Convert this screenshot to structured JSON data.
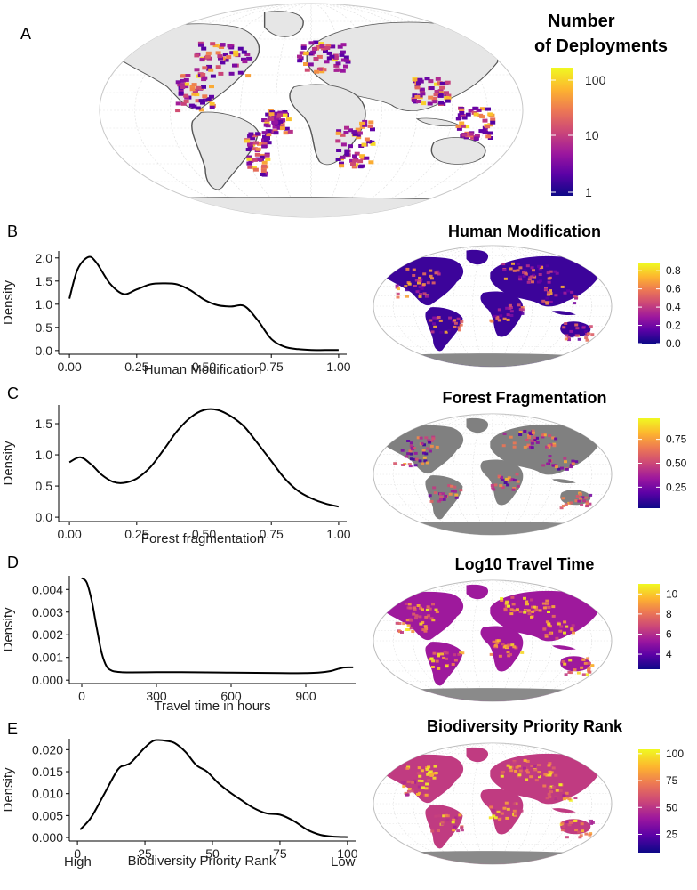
{
  "panel_a": {
    "letter": "A",
    "legend_title_line1": "Number",
    "legend_title_line2": "of Deployments",
    "colorbar_ticks": [
      "100",
      "10",
      "1"
    ]
  },
  "colors": {
    "plasma": [
      "#0d0887",
      "#5c01a6",
      "#9c179e",
      "#cc4778",
      "#ed7953",
      "#fdb42f",
      "#f0f921"
    ],
    "land": "#e6e6e6",
    "masked_land": "#808080",
    "curve": "#000000"
  },
  "chart_data": [
    {
      "id": "B",
      "type": "line",
      "letter": "B",
      "xlabel": "Human Modification",
      "ylabel": "Density",
      "xlim": [
        -0.04,
        1.03
      ],
      "ylim": [
        -0.08,
        2.15
      ],
      "xticks": [
        "0.00",
        "0.25",
        "0.50",
        "0.75",
        "1.00"
      ],
      "xtick_values": [
        0,
        0.25,
        0.5,
        0.75,
        1.0
      ],
      "yticks": [
        "0.0",
        "0.5",
        "1.0",
        "1.5",
        "2.0"
      ],
      "ytick_values": [
        0,
        0.5,
        1.0,
        1.5,
        2.0
      ],
      "series": [
        {
          "x": [
            0.0,
            0.03,
            0.07,
            0.1,
            0.15,
            0.2,
            0.25,
            0.3,
            0.35,
            0.4,
            0.45,
            0.5,
            0.55,
            0.6,
            0.65,
            0.7,
            0.75,
            0.8,
            0.85,
            0.9,
            0.95,
            1.0
          ],
          "y": [
            1.12,
            1.75,
            2.02,
            1.9,
            1.45,
            1.22,
            1.32,
            1.43,
            1.45,
            1.43,
            1.3,
            1.1,
            0.98,
            0.95,
            0.96,
            0.65,
            0.25,
            0.08,
            0.03,
            0.01,
            0.01,
            0.01
          ]
        }
      ]
    },
    {
      "id": "C",
      "type": "line",
      "letter": "C",
      "xlabel": "Forest fragmentation",
      "ylabel": "Density",
      "xlim": [
        -0.04,
        1.03
      ],
      "ylim": [
        -0.07,
        1.8
      ],
      "xticks": [
        "0.00",
        "0.25",
        "0.50",
        "0.75",
        "1.00"
      ],
      "xtick_values": [
        0,
        0.25,
        0.5,
        0.75,
        1.0
      ],
      "yticks": [
        "0.0",
        "0.5",
        "1.0",
        "1.5"
      ],
      "ytick_values": [
        0,
        0.5,
        1.0,
        1.5
      ],
      "series": [
        {
          "x": [
            0.0,
            0.04,
            0.08,
            0.12,
            0.16,
            0.2,
            0.25,
            0.3,
            0.35,
            0.4,
            0.45,
            0.5,
            0.55,
            0.6,
            0.65,
            0.7,
            0.75,
            0.8,
            0.85,
            0.9,
            0.95,
            1.0
          ],
          "y": [
            0.88,
            0.96,
            0.85,
            0.68,
            0.57,
            0.55,
            0.62,
            0.8,
            1.08,
            1.38,
            1.6,
            1.72,
            1.72,
            1.62,
            1.45,
            1.18,
            0.9,
            0.62,
            0.42,
            0.3,
            0.22,
            0.17
          ]
        }
      ]
    },
    {
      "id": "D",
      "type": "line",
      "letter": "D",
      "xlabel": "Travel time in hours",
      "ylabel": "Density",
      "xlim": [
        -50,
        1100
      ],
      "ylim": [
        -0.00015,
        0.0046
      ],
      "xticks": [
        "0",
        "300",
        "600",
        "900"
      ],
      "xtick_values": [
        0,
        300,
        600,
        900
      ],
      "yticks": [
        "0.000",
        "0.001",
        "0.002",
        "0.003",
        "0.004"
      ],
      "ytick_values": [
        0,
        0.001,
        0.002,
        0.003,
        0.004
      ],
      "series": [
        {
          "x": [
            0,
            20,
            40,
            60,
            80,
            100,
            120,
            140,
            160,
            200,
            300,
            400,
            500,
            600,
            700,
            800,
            900,
            950,
            1000,
            1050,
            1090
          ],
          "y": [
            0.0045,
            0.0043,
            0.0035,
            0.0023,
            0.0012,
            0.0006,
            0.00042,
            0.00037,
            0.00035,
            0.00034,
            0.00035,
            0.00035,
            0.00034,
            0.00033,
            0.00032,
            0.00031,
            0.00031,
            0.00033,
            0.0004,
            0.00055,
            0.00056
          ]
        }
      ]
    },
    {
      "id": "E",
      "type": "line",
      "letter": "E",
      "xlabel": "Biodiversity Priority Rank",
      "ylabel": "Density",
      "xlim": [
        -3,
        103
      ],
      "ylim": [
        -0.0008,
        0.0225
      ],
      "xticks": [
        "0",
        "25",
        "50",
        "75",
        "100"
      ],
      "xtick_values": [
        0,
        25,
        50,
        75,
        100
      ],
      "yticks": [
        "0.000",
        "0.005",
        "0.010",
        "0.015",
        "0.020"
      ],
      "ytick_values": [
        0,
        0.005,
        0.01,
        0.015,
        0.02
      ],
      "extra_labels": {
        "left": "High",
        "right": "Low"
      },
      "series": [
        {
          "x": [
            1,
            5,
            10,
            15,
            18,
            20,
            25,
            28,
            30,
            33,
            36,
            40,
            44,
            48,
            52,
            56,
            60,
            65,
            70,
            75,
            80,
            85,
            90,
            95,
            100
          ],
          "y": [
            0.0018,
            0.0045,
            0.01,
            0.0155,
            0.0165,
            0.0172,
            0.0205,
            0.022,
            0.0222,
            0.022,
            0.0215,
            0.0195,
            0.0165,
            0.015,
            0.0125,
            0.0105,
            0.0088,
            0.0068,
            0.0055,
            0.0052,
            0.0038,
            0.0018,
            0.0006,
            0.0002,
            0.0001
          ]
        }
      ]
    }
  ],
  "maps": [
    {
      "id": "B",
      "title": "Human Modification",
      "colorbar_ticks": [
        "0.8",
        "0.6",
        "0.4",
        "0.2",
        "0.0"
      ],
      "colorbar_values": [
        0.8,
        0.6,
        0.4,
        0.2,
        0.0
      ],
      "range": [
        0,
        0.88
      ]
    },
    {
      "id": "C",
      "title": "Forest Fragmentation",
      "colorbar_ticks": [
        "0.75",
        "0.50",
        "0.25"
      ],
      "colorbar_values": [
        0.75,
        0.5,
        0.25
      ],
      "range": [
        0.03,
        0.97
      ]
    },
    {
      "id": "D",
      "title": "Log10 Travel Time",
      "colorbar_ticks": [
        "10",
        "8",
        "6",
        "4"
      ],
      "colorbar_values": [
        10,
        8,
        6,
        4
      ],
      "range": [
        2.5,
        11
      ]
    },
    {
      "id": "E",
      "title": "Biodiversity Priority Rank",
      "colorbar_ticks": [
        "100",
        "75",
        "50",
        "25"
      ],
      "colorbar_values": [
        100,
        75,
        50,
        25
      ],
      "range": [
        8,
        104
      ]
    }
  ]
}
